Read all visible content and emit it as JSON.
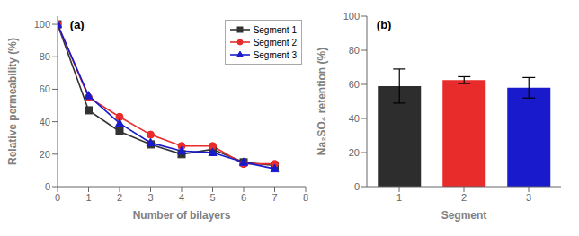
{
  "chart_data": [
    {
      "type": "line",
      "x": [
        0,
        1,
        2,
        3,
        4,
        5,
        6,
        7
      ],
      "series": [
        {
          "name": "Segment 1",
          "color": "#333333",
          "marker": "square",
          "values": [
            100,
            47,
            34,
            26,
            20,
            23,
            15,
            13
          ]
        },
        {
          "name": "Segment 2",
          "color": "#e82b2b",
          "marker": "circle",
          "values": [
            100,
            55,
            43,
            32,
            25,
            25,
            14,
            14
          ]
        },
        {
          "name": "Segment 3",
          "color": "#1a1acd",
          "marker": "triangle",
          "values": [
            100,
            56,
            39,
            27,
            22,
            21,
            15,
            11
          ]
        }
      ],
      "xlabel": "Number of bilayers",
      "ylabel": "Relative permeability (%)",
      "xlim": [
        0,
        8
      ],
      "xticks": [
        0,
        1,
        2,
        3,
        4,
        5,
        6,
        7,
        8
      ],
      "ylim": [
        0,
        105
      ],
      "yticks": [
        0,
        20,
        40,
        60,
        80,
        100
      ],
      "annotations": [
        "(a)"
      ],
      "legend": "upper right",
      "grid": false
    },
    {
      "type": "bar",
      "categories": [
        "1",
        "2",
        "3"
      ],
      "values": [
        59,
        62.5,
        58
      ],
      "errors": [
        10,
        2,
        6
      ],
      "colors": [
        "#2d2d2d",
        "#e82b2b",
        "#1a1acd"
      ],
      "xlabel": "Segment",
      "ylabel": "Na₂SO₄ retention (%)",
      "ylim": [
        0,
        100
      ],
      "yticks": [
        0,
        20,
        40,
        60,
        80,
        100
      ],
      "annotations": [
        "(b)"
      ],
      "grid": false
    }
  ]
}
